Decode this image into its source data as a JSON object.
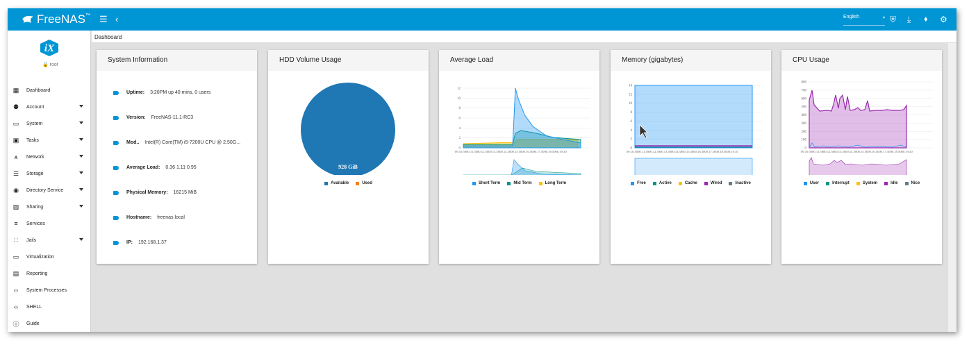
{
  "topbar": {
    "brand": "FreeNAS",
    "brand_mark": "™",
    "language": "English",
    "icons": [
      "menu-icon",
      "chevron-left-icon",
      "theme-icon",
      "download-icon",
      "bell-icon",
      "gear-icon"
    ]
  },
  "sidebar": {
    "logo": "iX",
    "user": "root",
    "items": [
      {
        "label": "Dashboard",
        "icon": "dashboard-icon",
        "submenu": false
      },
      {
        "label": "Account",
        "icon": "people-icon",
        "submenu": true
      },
      {
        "label": "System",
        "icon": "computer-icon",
        "submenu": true
      },
      {
        "label": "Tasks",
        "icon": "calendar-icon",
        "submenu": true
      },
      {
        "label": "Network",
        "icon": "network-icon",
        "submenu": true
      },
      {
        "label": "Storage",
        "icon": "storage-icon",
        "submenu": true
      },
      {
        "label": "Directory Service",
        "icon": "directory-icon",
        "submenu": true
      },
      {
        "label": "Sharing",
        "icon": "folder-shared-icon",
        "submenu": true
      },
      {
        "label": "Services",
        "icon": "tune-icon",
        "submenu": false
      },
      {
        "label": "Jails",
        "icon": "apps-icon",
        "submenu": true
      },
      {
        "label": "Virtualization",
        "icon": "laptop-icon",
        "submenu": false
      },
      {
        "label": "Reporting",
        "icon": "chart-icon",
        "submenu": false
      },
      {
        "label": "System Processes",
        "icon": "code-icon",
        "submenu": false
      },
      {
        "label": "SHELL",
        "icon": "code-icon",
        "submenu": false
      },
      {
        "label": "Guide",
        "icon": "info-icon",
        "submenu": false
      }
    ]
  },
  "breadcrumb": "Dashboard",
  "cards": {
    "system_info": {
      "title": "System Information",
      "rows": [
        {
          "label": "Uptime:",
          "value": "3:20PM up 40 mins, 0 users"
        },
        {
          "label": "Version:",
          "value": "FreeNAS-11.1-RC3"
        },
        {
          "label": "Mod..",
          "value": "Intel(R) Core(TM) i5-7200U CPU @ 2.50G..."
        },
        {
          "label": "Average Load:",
          "value": "0.36 1.11 0.95"
        },
        {
          "label": "Physical Memory:",
          "value": "16215 MiB"
        },
        {
          "label": "Hostname:",
          "value": "freenas.local"
        },
        {
          "label": "IP:",
          "value": "192.168.1.37"
        }
      ]
    },
    "hdd": {
      "title": "HDD Volume Usage",
      "center_label": "928 GiB",
      "legend": [
        {
          "name": "Available",
          "color": "#1f77b4"
        },
        {
          "name": "Used",
          "color": "#ff7f0e"
        }
      ]
    },
    "load": {
      "title": "Average Load",
      "y_ticks": [
        "12",
        "10",
        "8",
        "6",
        "4",
        "2",
        "0"
      ],
      "x_ticks": "09.10.5000.11.5000.12.5000.13.5000.14.5000.15.5000.16.5000.17.5000.18.5000.19.30",
      "legend": [
        {
          "name": "Short Term",
          "color": "#2196f3"
        },
        {
          "name": "Mid Term",
          "color": "#009688"
        },
        {
          "name": "Long Term",
          "color": "#ffc107"
        }
      ]
    },
    "memory": {
      "title": "Memory (gigabytes)",
      "y_ticks": [
        "14",
        "12",
        "10",
        "8",
        "6",
        "4",
        "2",
        "0"
      ],
      "x_ticks": "09.10.5000.11.5000.12.5000.13.5000.14.5000.15.5000.16.5000.17.5000.18.5000.19.30",
      "legend": [
        {
          "name": "Free",
          "color": "#2196f3"
        },
        {
          "name": "Active",
          "color": "#009688"
        },
        {
          "name": "Cache",
          "color": "#ffc107"
        },
        {
          "name": "Wired",
          "color": "#9c27b0"
        },
        {
          "name": "Inactive",
          "color": "#607d8b"
        }
      ]
    },
    "cpu": {
      "title": "CPU Usage",
      "y_ticks": [
        "800",
        "700",
        "600",
        "500",
        "400",
        "300",
        "200",
        "100",
        "0"
      ],
      "x_ticks": "09.10.5000.11.5000.12.5000.13.5000.14.5000.15.5000.16.5000.17.5000.18.5000.19.30",
      "legend": [
        {
          "name": "User",
          "color": "#2196f3"
        },
        {
          "name": "Interrupt",
          "color": "#009688"
        },
        {
          "name": "System",
          "color": "#ffc107"
        },
        {
          "name": "Idle",
          "color": "#9c27b0"
        },
        {
          "name": "Nice",
          "color": "#607d8b"
        }
      ]
    }
  }
}
